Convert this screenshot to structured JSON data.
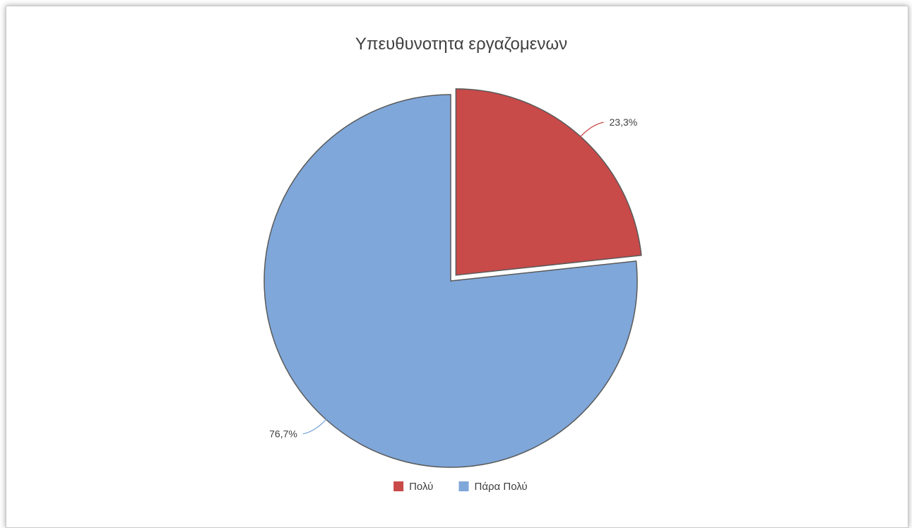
{
  "chart_data": {
    "type": "pie",
    "title": "Υπευθυνοτητα εργαζομενων",
    "slices": [
      {
        "label": "Πολύ",
        "value": 23.3,
        "display": "23,3%",
        "color": "#c84a49",
        "exploded": true
      },
      {
        "label": "Πάρα Πολύ",
        "value": 76.7,
        "display": "76,7%",
        "color": "#7fa7da",
        "exploded": false
      }
    ],
    "legend_position": "bottom",
    "start_angle": "top, clockwise",
    "outline_color": "#5a5a5a"
  }
}
